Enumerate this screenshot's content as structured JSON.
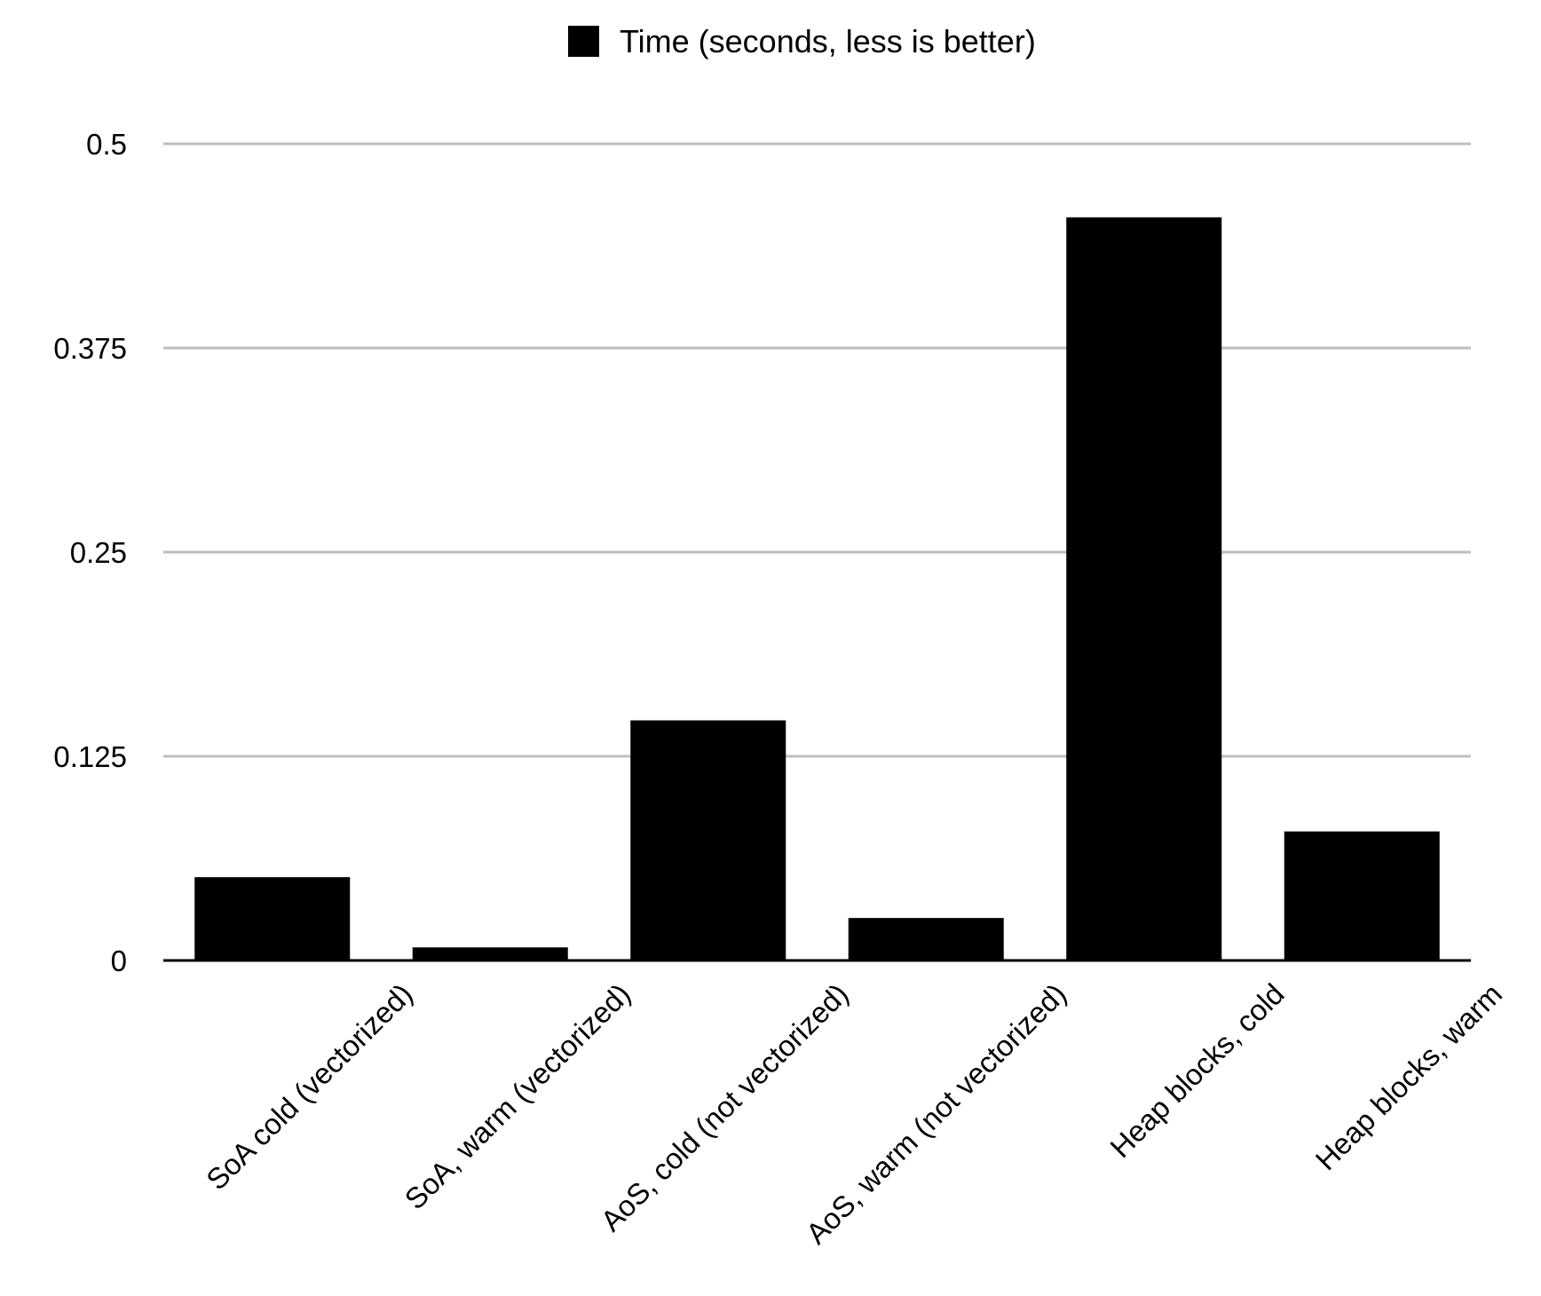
{
  "chart_data": {
    "type": "bar",
    "categories": [
      "SoA cold (vectorized)",
      "SoA, warm (vectorized)",
      "AoS, cold (not vectorized)",
      "AoS, warm (not vectorized)",
      "Heap blocks, cold",
      "Heap blocks, warm"
    ],
    "series": [
      {
        "name": "Time (seconds, less is better)",
        "color": "#000000",
        "values": [
          0.051,
          0.008,
          0.147,
          0.026,
          0.455,
          0.079
        ]
      }
    ],
    "ylim": [
      0,
      0.5
    ],
    "yticks": [
      0,
      0.125,
      0.25,
      0.375,
      0.5
    ],
    "ytick_labels": [
      "0",
      "0.125",
      "0.25",
      "0.375",
      "0.5"
    ],
    "grid": true,
    "legend_position": "top-center",
    "title": "",
    "xlabel": "",
    "ylabel": ""
  }
}
